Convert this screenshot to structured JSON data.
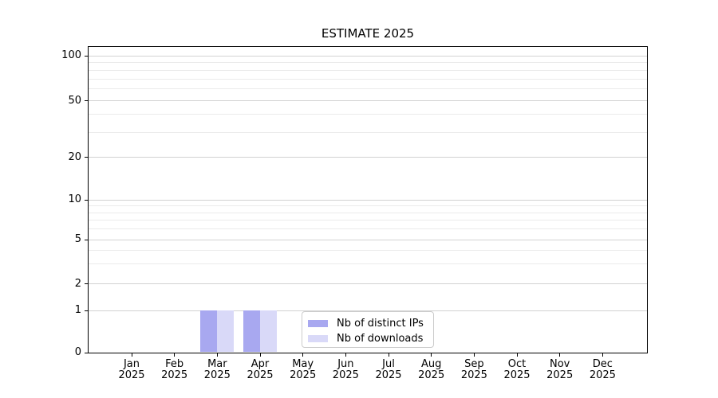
{
  "title": "ESTIMATE 2025",
  "chart_data": {
    "type": "bar",
    "title": "ESTIMATE 2025",
    "categories": [
      "Jan 2025",
      "Feb 2025",
      "Mar 2025",
      "Apr 2025",
      "May 2025",
      "Jun 2025",
      "Jul 2025",
      "Aug 2025",
      "Sep 2025",
      "Oct 2025",
      "Nov 2025",
      "Dec 2025"
    ],
    "series": [
      {
        "name": "Nb of distinct IPs",
        "color": "#a8a8f0",
        "values": [
          0,
          0,
          1,
          1,
          0,
          0,
          0,
          0,
          0,
          0,
          0,
          0
        ]
      },
      {
        "name": "Nb of downloads",
        "color": "#d9d9f8",
        "values": [
          0,
          0,
          1,
          1,
          0,
          0,
          0,
          0,
          0,
          0,
          0,
          0
        ]
      }
    ],
    "xaxis": {
      "ticks": [
        {
          "m": "Jan",
          "y": "2025"
        },
        {
          "m": "Feb",
          "y": "2025"
        },
        {
          "m": "Mar",
          "y": "2025"
        },
        {
          "m": "Apr",
          "y": "2025"
        },
        {
          "m": "May",
          "y": "2025"
        },
        {
          "m": "Jun",
          "y": "2025"
        },
        {
          "m": "Jul",
          "y": "2025"
        },
        {
          "m": "Aug",
          "y": "2025"
        },
        {
          "m": "Sep",
          "y": "2025"
        },
        {
          "m": "Oct",
          "y": "2025"
        },
        {
          "m": "Nov",
          "y": "2025"
        },
        {
          "m": "Dec",
          "y": "2025"
        }
      ]
    },
    "yaxis": {
      "scale": "symlog",
      "ticks": [
        100,
        50,
        20,
        10,
        5,
        2,
        1,
        0
      ],
      "minor_ticks": [
        90,
        80,
        70,
        60,
        40,
        30,
        9,
        8,
        7,
        6,
        4,
        3
      ],
      "range": [
        0,
        120
      ]
    },
    "legend": {
      "position": "lower-center",
      "entries": [
        "Nb of distinct IPs",
        "Nb of downloads"
      ]
    },
    "grid": true
  },
  "colors": {
    "background": "#ffffff",
    "axis": "#000000",
    "text": "#000000",
    "major_grid": "#d2d2d2",
    "minor_grid": "#ebebeb",
    "legend_border": "#cccccc",
    "bar_distinct_ips": "#a8a8f0",
    "bar_downloads": "#d9d9f8"
  }
}
